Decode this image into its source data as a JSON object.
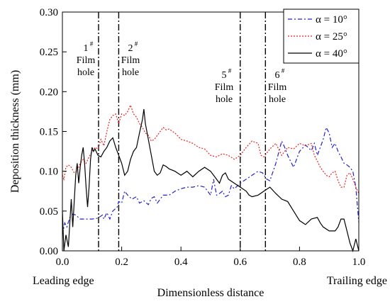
{
  "chart_data": {
    "type": "line",
    "xlabel": "Dimensionless distance",
    "ylabel": "Deposition thickness (mm)",
    "xlim": [
      0,
      1.0
    ],
    "ylim": [
      0,
      0.3
    ],
    "x_ticks": [
      "0.0",
      "0.2",
      "0.4",
      "0.6",
      "0.8",
      "1.0"
    ],
    "y_ticks": [
      "0.00",
      "0.05",
      "0.10",
      "0.15",
      "0.20",
      "0.25",
      "0.30"
    ],
    "x_tick_values": [
      0,
      0.2,
      0.4,
      0.6,
      0.8,
      1.0
    ],
    "y_tick_values": [
      0,
      0.05,
      0.1,
      0.15,
      0.2,
      0.25,
      0.3
    ],
    "edge_labels": {
      "left": "Leading edge",
      "right": "Trailing edge"
    },
    "film_holes": [
      {
        "x": 0.122,
        "sup": "#",
        "num": "1",
        "lines": [
          "Film",
          "hole"
        ]
      },
      {
        "x": 0.19,
        "sup": "#",
        "num": "2",
        "lines": [
          "Film",
          "hole"
        ]
      },
      {
        "x": 0.6,
        "sup": "#",
        "num": "5",
        "lines": [
          "Film",
          "hole"
        ]
      },
      {
        "x": 0.685,
        "sup": "#",
        "num": "6",
        "lines": [
          "Film",
          "hole"
        ]
      }
    ],
    "legend_position": "top-right",
    "grid": false,
    "series": [
      {
        "name": "α = 10°",
        "color": "#2222cc",
        "dash": "dashdot",
        "points": [
          [
            0.0,
            0.02
          ],
          [
            0.008,
            0.035
          ],
          [
            0.015,
            0.03
          ],
          [
            0.025,
            0.042
          ],
          [
            0.035,
            0.046
          ],
          [
            0.045,
            0.045
          ],
          [
            0.06,
            0.04
          ],
          [
            0.08,
            0.04
          ],
          [
            0.1,
            0.04
          ],
          [
            0.12,
            0.041
          ],
          [
            0.135,
            0.045
          ],
          [
            0.14,
            0.04
          ],
          [
            0.15,
            0.048
          ],
          [
            0.16,
            0.04
          ],
          [
            0.17,
            0.05
          ],
          [
            0.185,
            0.055
          ],
          [
            0.19,
            0.062
          ],
          [
            0.2,
            0.06
          ],
          [
            0.21,
            0.075
          ],
          [
            0.22,
            0.07
          ],
          [
            0.235,
            0.065
          ],
          [
            0.25,
            0.068
          ],
          [
            0.26,
            0.06
          ],
          [
            0.275,
            0.063
          ],
          [
            0.29,
            0.058
          ],
          [
            0.3,
            0.066
          ],
          [
            0.31,
            0.068
          ],
          [
            0.32,
            0.06
          ],
          [
            0.34,
            0.07
          ],
          [
            0.36,
            0.07
          ],
          [
            0.38,
            0.075
          ],
          [
            0.4,
            0.078
          ],
          [
            0.42,
            0.08
          ],
          [
            0.44,
            0.08
          ],
          [
            0.46,
            0.082
          ],
          [
            0.48,
            0.08
          ],
          [
            0.5,
            0.07
          ],
          [
            0.51,
            0.09
          ],
          [
            0.52,
            0.07
          ],
          [
            0.53,
            0.072
          ],
          [
            0.54,
            0.075
          ],
          [
            0.55,
            0.068
          ],
          [
            0.56,
            0.07
          ],
          [
            0.57,
            0.082
          ],
          [
            0.58,
            0.078
          ],
          [
            0.6,
            0.085
          ],
          [
            0.62,
            0.09
          ],
          [
            0.64,
            0.095
          ],
          [
            0.66,
            0.1
          ],
          [
            0.675,
            0.098
          ],
          [
            0.69,
            0.09
          ],
          [
            0.7,
            0.088
          ],
          [
            0.72,
            0.11
          ],
          [
            0.74,
            0.138
          ],
          [
            0.75,
            0.13
          ],
          [
            0.76,
            0.12
          ],
          [
            0.78,
            0.105
          ],
          [
            0.8,
            0.125
          ],
          [
            0.82,
            0.133
          ],
          [
            0.84,
            0.126
          ],
          [
            0.85,
            0.135
          ],
          [
            0.86,
            0.12
          ],
          [
            0.87,
            0.13
          ],
          [
            0.88,
            0.14
          ],
          [
            0.89,
            0.155
          ],
          [
            0.9,
            0.148
          ],
          [
            0.91,
            0.13
          ],
          [
            0.92,
            0.135
          ],
          [
            0.93,
            0.125
          ],
          [
            0.94,
            0.118
          ],
          [
            0.95,
            0.11
          ],
          [
            0.96,
            0.108
          ],
          [
            0.97,
            0.105
          ],
          [
            0.98,
            0.1
          ],
          [
            0.99,
            0.08
          ],
          [
            1.0,
            0.036
          ]
        ]
      },
      {
        "name": "α = 25°",
        "color": "#ee2222",
        "dash": "dot",
        "points": [
          [
            0.0,
            0.095
          ],
          [
            0.005,
            0.09
          ],
          [
            0.012,
            0.105
          ],
          [
            0.02,
            0.108
          ],
          [
            0.03,
            0.105
          ],
          [
            0.04,
            0.098
          ],
          [
            0.05,
            0.1
          ],
          [
            0.06,
            0.11
          ],
          [
            0.07,
            0.115
          ],
          [
            0.08,
            0.11
          ],
          [
            0.09,
            0.118
          ],
          [
            0.1,
            0.125
          ],
          [
            0.11,
            0.13
          ],
          [
            0.12,
            0.128
          ],
          [
            0.13,
            0.14
          ],
          [
            0.14,
            0.132
          ],
          [
            0.15,
            0.15
          ],
          [
            0.16,
            0.165
          ],
          [
            0.17,
            0.17
          ],
          [
            0.18,
            0.172
          ],
          [
            0.19,
            0.16
          ],
          [
            0.2,
            0.172
          ],
          [
            0.21,
            0.17
          ],
          [
            0.22,
            0.175
          ],
          [
            0.23,
            0.183
          ],
          [
            0.24,
            0.172
          ],
          [
            0.25,
            0.168
          ],
          [
            0.26,
            0.16
          ],
          [
            0.27,
            0.155
          ],
          [
            0.28,
            0.148
          ],
          [
            0.29,
            0.145
          ],
          [
            0.3,
            0.138
          ],
          [
            0.31,
            0.14
          ],
          [
            0.32,
            0.145
          ],
          [
            0.33,
            0.15
          ],
          [
            0.34,
            0.155
          ],
          [
            0.35,
            0.152
          ],
          [
            0.36,
            0.153
          ],
          [
            0.38,
            0.148
          ],
          [
            0.4,
            0.14
          ],
          [
            0.42,
            0.138
          ],
          [
            0.44,
            0.135
          ],
          [
            0.46,
            0.13
          ],
          [
            0.48,
            0.128
          ],
          [
            0.5,
            0.12
          ],
          [
            0.52,
            0.118
          ],
          [
            0.54,
            0.122
          ],
          [
            0.56,
            0.12
          ],
          [
            0.58,
            0.115
          ],
          [
            0.6,
            0.12
          ],
          [
            0.62,
            0.13
          ],
          [
            0.64,
            0.138
          ],
          [
            0.66,
            0.135
          ],
          [
            0.67,
            0.12
          ],
          [
            0.68,
            0.118
          ],
          [
            0.7,
            0.128
          ],
          [
            0.72,
            0.135
          ],
          [
            0.74,
            0.12
          ],
          [
            0.76,
            0.13
          ],
          [
            0.78,
            0.128
          ],
          [
            0.8,
            0.135
          ],
          [
            0.82,
            0.132
          ],
          [
            0.84,
            0.135
          ],
          [
            0.85,
            0.12
          ],
          [
            0.86,
            0.113
          ],
          [
            0.87,
            0.105
          ],
          [
            0.88,
            0.1
          ],
          [
            0.89,
            0.095
          ],
          [
            0.9,
            0.093
          ],
          [
            0.91,
            0.098
          ],
          [
            0.92,
            0.1
          ],
          [
            0.93,
            0.088
          ],
          [
            0.94,
            0.08
          ],
          [
            0.95,
            0.08
          ],
          [
            0.96,
            0.095
          ],
          [
            0.97,
            0.098
          ],
          [
            0.98,
            0.09
          ],
          [
            0.99,
            0.08
          ],
          [
            1.0,
            0.072
          ]
        ]
      },
      {
        "name": "α = 40°",
        "color": "#000000",
        "dash": "solid",
        "points": [
          [
            0.0,
            0.05
          ],
          [
            0.005,
            0.0
          ],
          [
            0.012,
            0.02
          ],
          [
            0.02,
            0.005
          ],
          [
            0.03,
            0.065
          ],
          [
            0.035,
            0.03
          ],
          [
            0.045,
            0.095
          ],
          [
            0.05,
            0.11
          ],
          [
            0.055,
            0.085
          ],
          [
            0.06,
            0.105
          ],
          [
            0.065,
            0.12
          ],
          [
            0.07,
            0.13
          ],
          [
            0.075,
            0.11
          ],
          [
            0.08,
            0.08
          ],
          [
            0.085,
            0.055
          ],
          [
            0.09,
            0.08
          ],
          [
            0.095,
            0.115
          ],
          [
            0.1,
            0.13
          ],
          [
            0.105,
            0.125
          ],
          [
            0.11,
            0.128
          ],
          [
            0.12,
            0.12
          ],
          [
            0.13,
            0.118
          ],
          [
            0.14,
            0.125
          ],
          [
            0.15,
            0.13
          ],
          [
            0.16,
            0.138
          ],
          [
            0.17,
            0.142
          ],
          [
            0.18,
            0.13
          ],
          [
            0.19,
            0.12
          ],
          [
            0.2,
            0.11
          ],
          [
            0.21,
            0.095
          ],
          [
            0.22,
            0.1
          ],
          [
            0.23,
            0.115
          ],
          [
            0.24,
            0.125
          ],
          [
            0.25,
            0.13
          ],
          [
            0.26,
            0.148
          ],
          [
            0.27,
            0.165
          ],
          [
            0.275,
            0.178
          ],
          [
            0.28,
            0.16
          ],
          [
            0.29,
            0.14
          ],
          [
            0.3,
            0.12
          ],
          [
            0.31,
            0.1
          ],
          [
            0.32,
            0.095
          ],
          [
            0.33,
            0.098
          ],
          [
            0.34,
            0.108
          ],
          [
            0.35,
            0.106
          ],
          [
            0.36,
            0.103
          ],
          [
            0.38,
            0.1
          ],
          [
            0.4,
            0.095
          ],
          [
            0.42,
            0.1
          ],
          [
            0.44,
            0.093
          ],
          [
            0.46,
            0.1
          ],
          [
            0.48,
            0.105
          ],
          [
            0.5,
            0.1
          ],
          [
            0.52,
            0.09
          ],
          [
            0.53,
            0.085
          ],
          [
            0.54,
            0.095
          ],
          [
            0.55,
            0.098
          ],
          [
            0.56,
            0.09
          ],
          [
            0.58,
            0.085
          ],
          [
            0.6,
            0.08
          ],
          [
            0.62,
            0.075
          ],
          [
            0.63,
            0.07
          ],
          [
            0.64,
            0.068
          ],
          [
            0.66,
            0.07
          ],
          [
            0.68,
            0.075
          ],
          [
            0.7,
            0.08
          ],
          [
            0.72,
            0.072
          ],
          [
            0.74,
            0.065
          ],
          [
            0.76,
            0.062
          ],
          [
            0.78,
            0.05
          ],
          [
            0.8,
            0.038
          ],
          [
            0.82,
            0.033
          ],
          [
            0.84,
            0.04
          ],
          [
            0.86,
            0.042
          ],
          [
            0.87,
            0.035
          ],
          [
            0.88,
            0.03
          ],
          [
            0.9,
            0.025
          ],
          [
            0.92,
            0.025
          ],
          [
            0.93,
            0.03
          ],
          [
            0.94,
            0.04
          ],
          [
            0.95,
            0.04
          ],
          [
            0.96,
            0.025
          ],
          [
            0.97,
            0.01
          ],
          [
            0.98,
            0.0
          ],
          [
            0.99,
            0.015
          ],
          [
            1.0,
            0.0
          ]
        ]
      }
    ]
  }
}
